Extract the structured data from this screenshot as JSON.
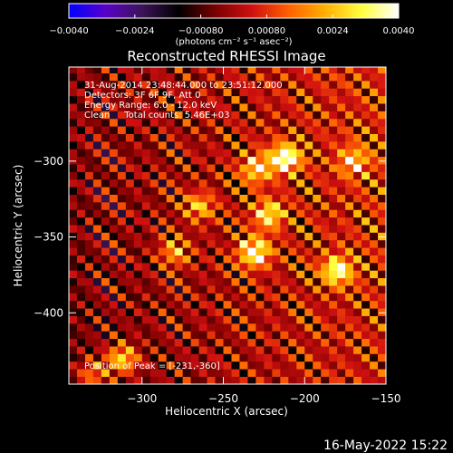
{
  "chart_data": {
    "type": "heatmap",
    "title": "Reconstructed RHESSI Image",
    "xlabel": "Heliocentric X (arcsec)",
    "ylabel": "Heliocentric Y (arcsec)",
    "xlim": [
      -345,
      -150
    ],
    "ylim": [
      -447,
      -238
    ],
    "xticks": [
      -300,
      -250,
      -200,
      -150
    ],
    "xtick_labels": [
      "−300",
      "−250",
      "−200",
      "−150"
    ],
    "yticks": [
      -300,
      -350,
      -400
    ],
    "ytick_labels": [
      "−300",
      "−350",
      "−400"
    ],
    "colorbar": {
      "range": [
        -0.004,
        0.004
      ],
      "ticks": [
        -0.004,
        -0.0024,
        -0.0008,
        0.0008,
        0.0024,
        0.004
      ],
      "tick_labels": [
        "−0.0040",
        "−0.0024",
        "−0.00080",
        "0.00080",
        "0.0024",
        "0.0040"
      ],
      "units_text": "(photons cm⁻² s⁻¹ asec⁻²)",
      "colors": [
        "#0000ff",
        "#5a00c8",
        "#3c1458",
        "#000000",
        "#7a0000",
        "#d01010",
        "#ff6000",
        "#ffb000",
        "#ffff40",
        "#ffffff"
      ]
    },
    "annotations": [
      "31-Aug-2014 23:48:44.000 to 23:51:12.000",
      "Detectors: 3F 6F 9F, Att 0",
      "Energy Range: 6.0 - 12.0 keV",
      "Clean     Total counts: 5.46E+03"
    ],
    "peak_label": "Position of Peak = [-231,-360]",
    "bright_sources": [
      {
        "x": -212,
        "y": -298,
        "intensity": 0.004
      },
      {
        "x": -231,
        "y": -360,
        "intensity": 0.004
      },
      {
        "x": -180,
        "y": -372,
        "intensity": 0.0034
      },
      {
        "x": -222,
        "y": -335,
        "intensity": 0.003
      },
      {
        "x": -230,
        "y": -305,
        "intensity": 0.0028
      },
      {
        "x": -312,
        "y": -430,
        "intensity": 0.003
      },
      {
        "x": -265,
        "y": -330,
        "intensity": 0.0024
      },
      {
        "x": -280,
        "y": -360,
        "intensity": 0.0022
      },
      {
        "x": -170,
        "y": -300,
        "intensity": 0.0024
      },
      {
        "x": -330,
        "y": -440,
        "intensity": 0.002
      }
    ]
  },
  "footer": {
    "timestamp": "16-May-2022 15:22"
  }
}
